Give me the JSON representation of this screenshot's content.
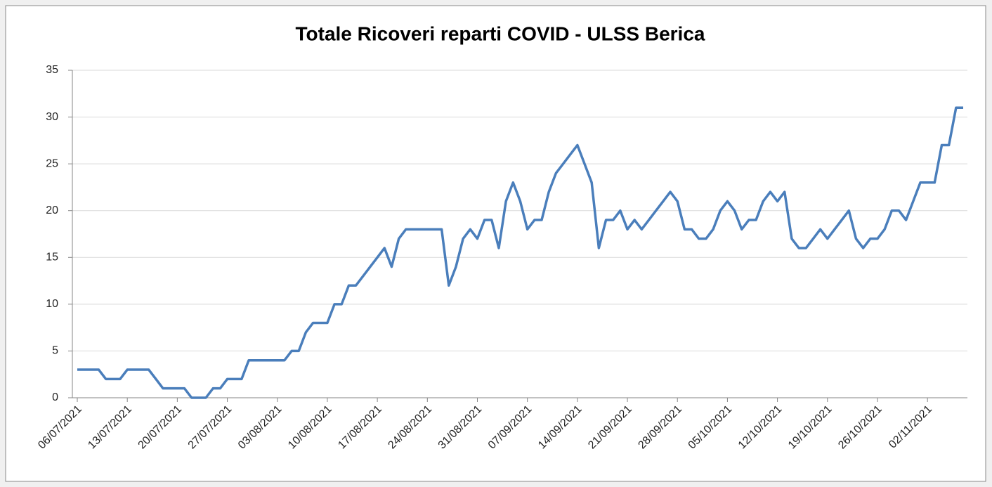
{
  "chart_data": {
    "type": "line",
    "title": "Totale Ricoveri reparti COVID - ULSS Berica",
    "x": [
      "06/07/2021",
      "07/07/2021",
      "08/07/2021",
      "09/07/2021",
      "10/07/2021",
      "11/07/2021",
      "12/07/2021",
      "13/07/2021",
      "14/07/2021",
      "15/07/2021",
      "16/07/2021",
      "17/07/2021",
      "18/07/2021",
      "19/07/2021",
      "20/07/2021",
      "21/07/2021",
      "22/07/2021",
      "23/07/2021",
      "24/07/2021",
      "25/07/2021",
      "26/07/2021",
      "27/07/2021",
      "28/07/2021",
      "29/07/2021",
      "30/07/2021",
      "31/07/2021",
      "01/08/2021",
      "02/08/2021",
      "03/08/2021",
      "04/08/2021",
      "05/08/2021",
      "06/08/2021",
      "07/08/2021",
      "08/08/2021",
      "09/08/2021",
      "10/08/2021",
      "11/08/2021",
      "12/08/2021",
      "13/08/2021",
      "14/08/2021",
      "15/08/2021",
      "16/08/2021",
      "17/08/2021",
      "18/08/2021",
      "19/08/2021",
      "20/08/2021",
      "21/08/2021",
      "22/08/2021",
      "23/08/2021",
      "24/08/2021",
      "25/08/2021",
      "26/08/2021",
      "27/08/2021",
      "28/08/2021",
      "29/08/2021",
      "30/08/2021",
      "31/08/2021",
      "01/09/2021",
      "02/09/2021",
      "03/09/2021",
      "04/09/2021",
      "05/09/2021",
      "06/09/2021",
      "07/09/2021",
      "08/09/2021",
      "09/09/2021",
      "10/09/2021",
      "11/09/2021",
      "12/09/2021",
      "13/09/2021",
      "14/09/2021",
      "15/09/2021",
      "16/09/2021",
      "17/09/2021",
      "18/09/2021",
      "19/09/2021",
      "20/09/2021",
      "21/09/2021",
      "22/09/2021",
      "23/09/2021",
      "24/09/2021",
      "25/09/2021",
      "26/09/2021",
      "27/09/2021",
      "28/09/2021",
      "29/09/2021",
      "30/09/2021",
      "01/10/2021",
      "02/10/2021",
      "03/10/2021",
      "04/10/2021",
      "05/10/2021",
      "06/10/2021",
      "07/10/2021",
      "08/10/2021",
      "09/10/2021",
      "10/10/2021",
      "11/10/2021",
      "12/10/2021",
      "13/10/2021",
      "14/10/2021",
      "15/10/2021",
      "16/10/2021",
      "17/10/2021",
      "18/10/2021",
      "19/10/2021",
      "20/10/2021",
      "21/10/2021",
      "22/10/2021",
      "23/10/2021",
      "24/10/2021",
      "25/10/2021",
      "26/10/2021",
      "27/10/2021",
      "28/10/2021",
      "29/10/2021",
      "30/10/2021",
      "31/10/2021",
      "01/11/2021",
      "02/11/2021",
      "03/11/2021",
      "04/11/2021",
      "05/11/2021",
      "06/11/2021",
      "07/11/2021"
    ],
    "series": [
      {
        "color": "#4a7ebb",
        "values": [
          3,
          3,
          3,
          3,
          2,
          2,
          2,
          3,
          3,
          3,
          3,
          2,
          1,
          1,
          1,
          1,
          0,
          0,
          0,
          1,
          1,
          2,
          2,
          2,
          4,
          4,
          4,
          4,
          4,
          4,
          5,
          5,
          7,
          8,
          8,
          8,
          10,
          10,
          12,
          12,
          13,
          14,
          15,
          16,
          14,
          17,
          18,
          18,
          18,
          18,
          18,
          18,
          12,
          14,
          17,
          18,
          17,
          19,
          19,
          16,
          21,
          23,
          21,
          18,
          19,
          19,
          22,
          24,
          25,
          26,
          27,
          25,
          23,
          16,
          19,
          19,
          20,
          18,
          19,
          18,
          19,
          20,
          21,
          22,
          21,
          18,
          18,
          17,
          17,
          18,
          20,
          21,
          20,
          18,
          19,
          19,
          21,
          22,
          21,
          22,
          17,
          16,
          16,
          17,
          18,
          17,
          18,
          19,
          20,
          17,
          16,
          17,
          17,
          18,
          20,
          20,
          19,
          21,
          23,
          23,
          23,
          27,
          27,
          31,
          31
        ]
      }
    ],
    "xlim": [
      "06/07/2021",
      "07/11/2021"
    ],
    "xticks": [
      "06/07/2021",
      "13/07/2021",
      "20/07/2021",
      "27/07/2021",
      "03/08/2021",
      "10/08/2021",
      "17/08/2021",
      "24/08/2021",
      "31/08/2021",
      "07/09/2021",
      "14/09/2021",
      "21/09/2021",
      "28/09/2021",
      "05/10/2021",
      "12/10/2021",
      "19/10/2021",
      "26/10/2021",
      "02/11/2021"
    ],
    "ylim": [
      0,
      35
    ],
    "yticks": [
      0,
      5,
      10,
      15,
      20,
      25,
      30,
      35
    ],
    "grid": true
  }
}
